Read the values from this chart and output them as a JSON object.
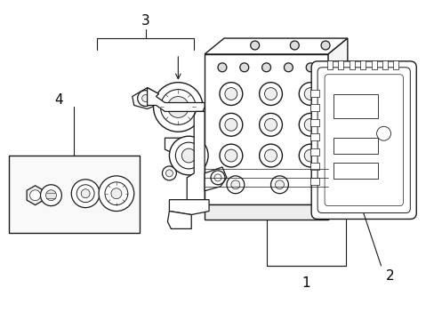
{
  "background_color": "#ffffff",
  "line_color": "#1a1a1a",
  "label_color": "#000000",
  "fig_width": 4.89,
  "fig_height": 3.6,
  "dpi": 100,
  "callout_fontsize": 11
}
